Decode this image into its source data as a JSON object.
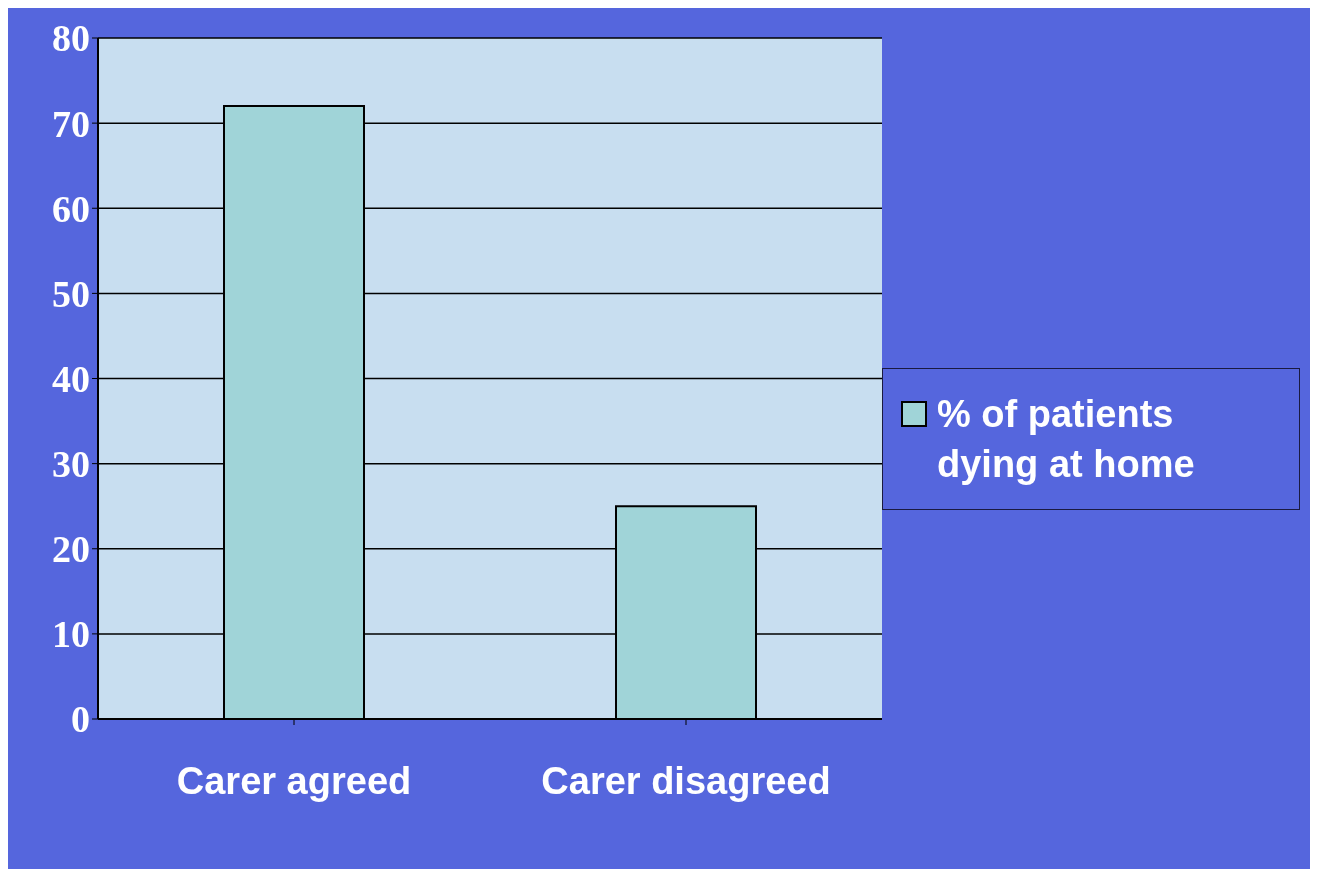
{
  "chart_data": {
    "type": "bar",
    "categories": [
      "Carer agreed",
      "Carer disagreed"
    ],
    "series": [
      {
        "name": "% of patients dying at home",
        "color": "#a0d4d8",
        "values": [
          72,
          25
        ]
      }
    ],
    "ylim": [
      0,
      80
    ],
    "yticks": [
      0,
      10,
      20,
      30,
      40,
      50,
      60,
      70,
      80
    ],
    "grid": "y",
    "legend": "right"
  }
}
